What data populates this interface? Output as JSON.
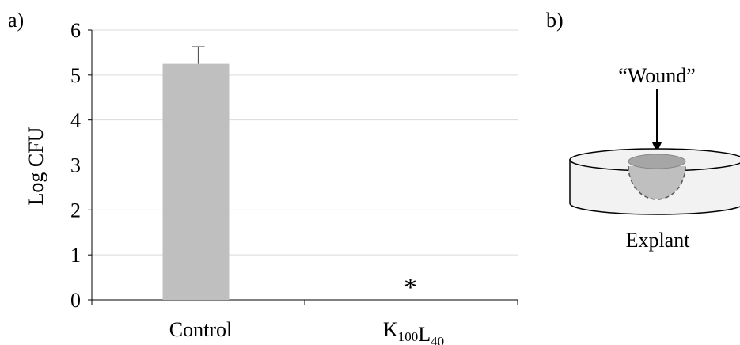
{
  "panels": {
    "a_label": "a)",
    "b_label": "b)"
  },
  "chart_data": {
    "type": "bar",
    "categories": [
      "Control",
      "K100L40"
    ],
    "category_labels": [
      {
        "base": "Control",
        "sub": []
      },
      {
        "base": "",
        "sub": [
          [
            "K",
            "100"
          ],
          [
            "L",
            "40"
          ]
        ]
      }
    ],
    "values": [
      5.25,
      0
    ],
    "error_plus": [
      0.38,
      0
    ],
    "annotations": [
      {
        "category": "K100L40",
        "text": "*"
      }
    ],
    "ylabel": "Log CFU",
    "xlabel": "",
    "ylim": [
      0,
      6
    ],
    "yticks": [
      0,
      1,
      2,
      3,
      4,
      5,
      6
    ],
    "grid": true,
    "bar_color": "#bfbfbf",
    "grid_color": "#d9d9d9"
  },
  "diagram": {
    "wound_label": "“Wound”",
    "explant_label": "Explant",
    "dish_fill": "#f2f2f2",
    "wound_fill": "#a6a6a6",
    "wound_dash_fill": "#bfbfbf"
  }
}
